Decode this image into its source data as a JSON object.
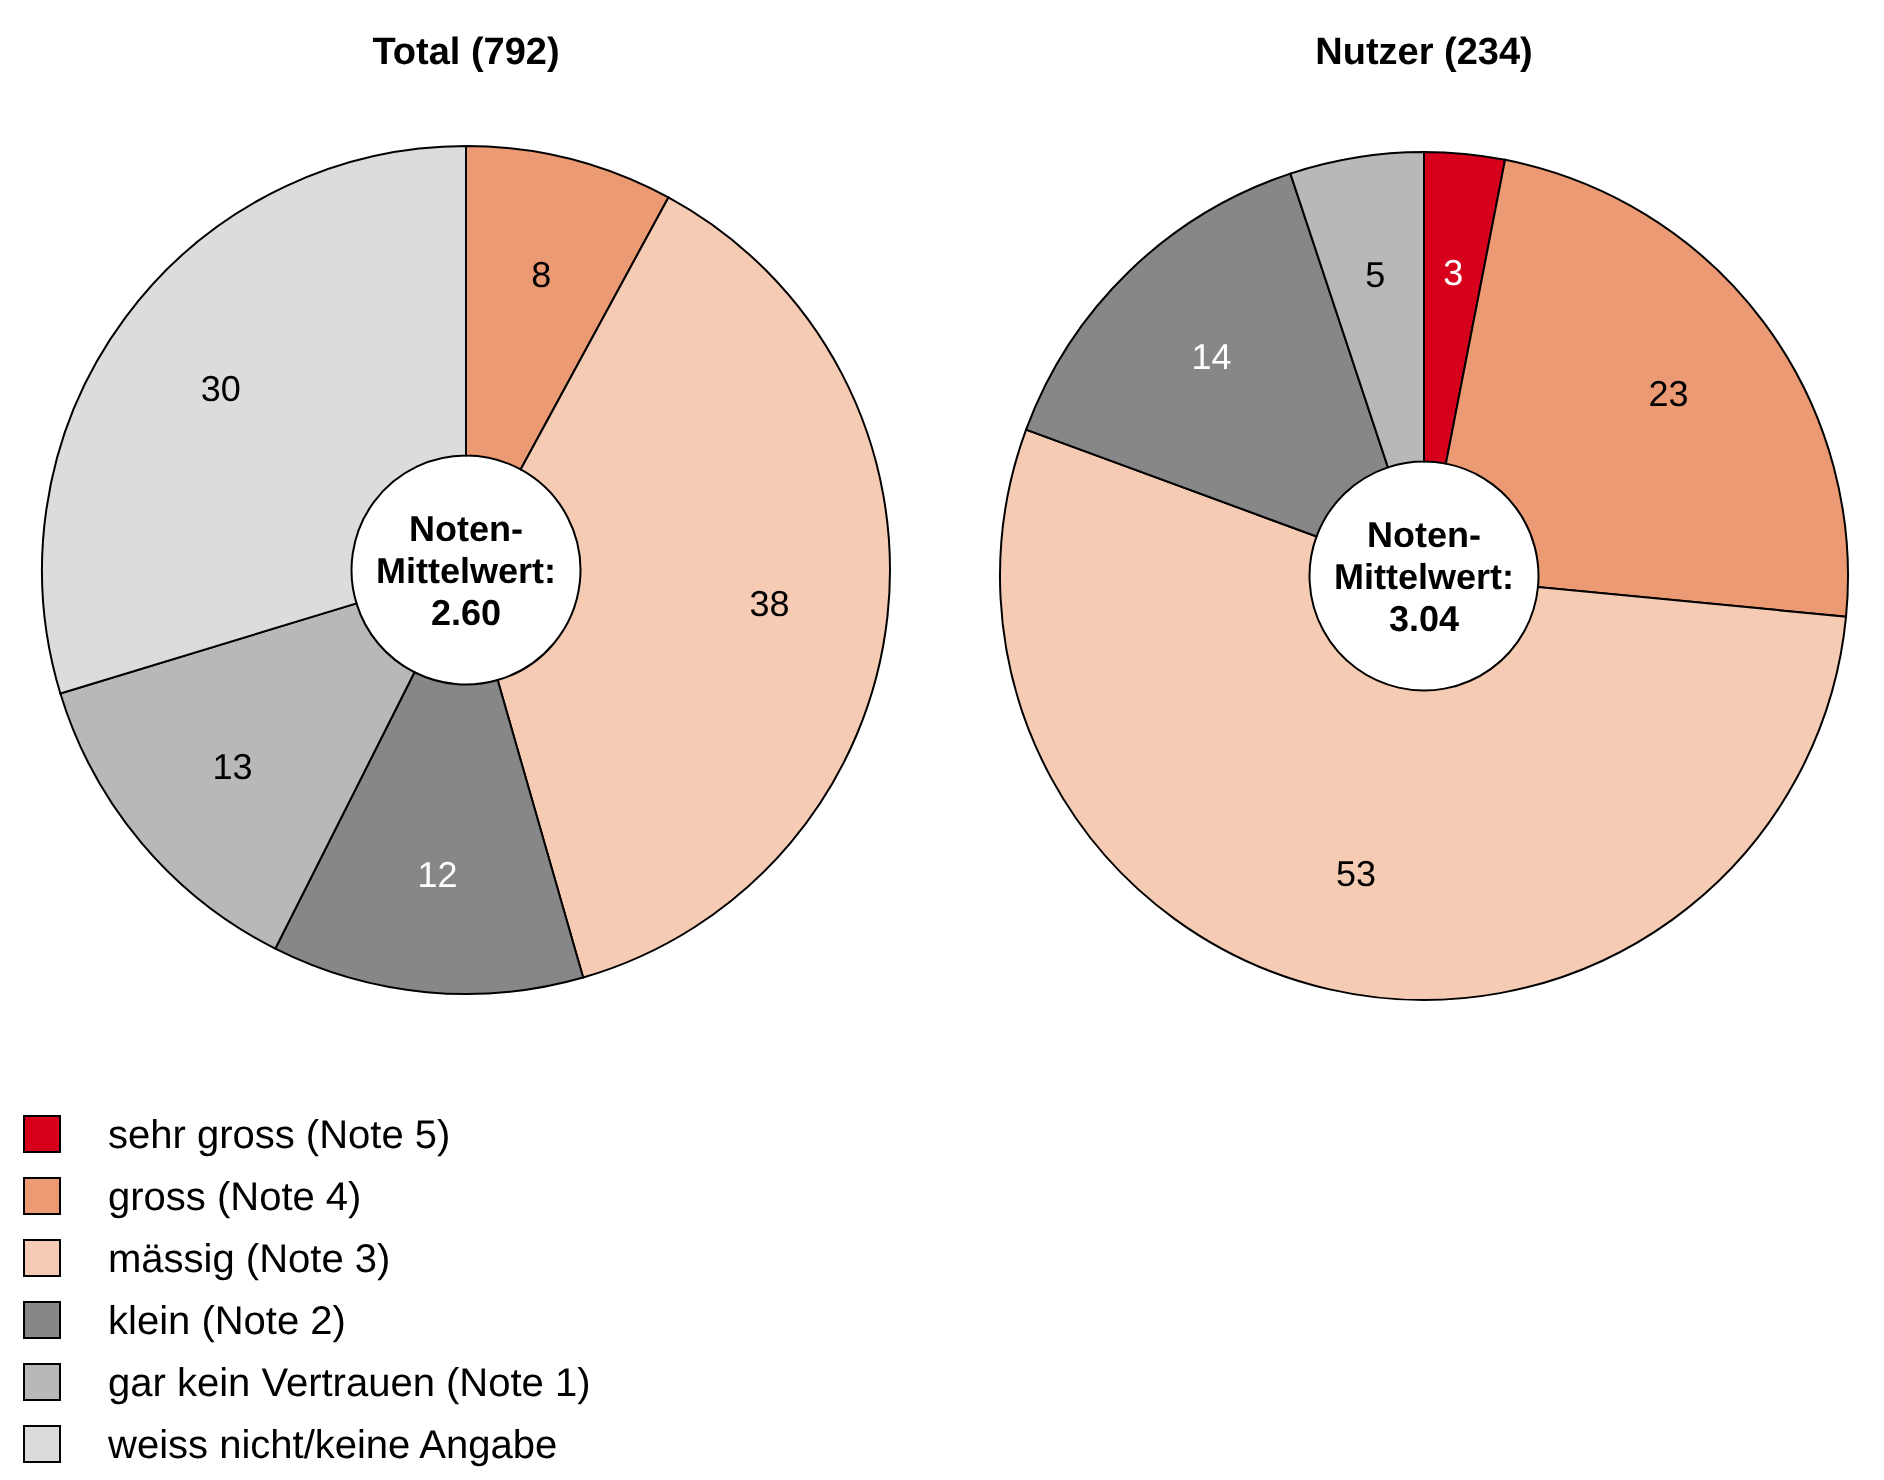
{
  "chart_data": [
    {
      "type": "donut",
      "title": "Total (792)",
      "categories": [
        "sehr gross (Note 5)",
        "gross (Note 4)",
        "mässig (Note 3)",
        "klein (Note 2)",
        "gar kein Vertrauen (Note 1)",
        "weiss nicht/keine Angabe"
      ],
      "values": [
        null,
        8,
        38,
        12,
        13,
        30
      ],
      "colors": [
        null,
        "#ec9a73",
        "#f6cbb3",
        "#878787",
        "#b8b8b8",
        "#dcdcdc"
      ],
      "data_labels": true,
      "annotations": [
        "Noten-\nMittelwert:\n2.60"
      ],
      "legend": "bottom left"
    },
    {
      "type": "donut",
      "title": "Nutzer (234)",
      "categories": [
        null,
        null,
        null,
        null,
        null,
        null
      ],
      "values": [
        3,
        23,
        53,
        14,
        5,
        null
      ],
      "colors": [
        "#d6001c",
        "#ec9a73",
        "#f6cbb3",
        "#878787",
        "#b8b8b8",
        null
      ],
      "data_labels": true,
      "annotations": [
        "Noten-\nMittelwert:\n3.04"
      ]
    }
  ]
}
